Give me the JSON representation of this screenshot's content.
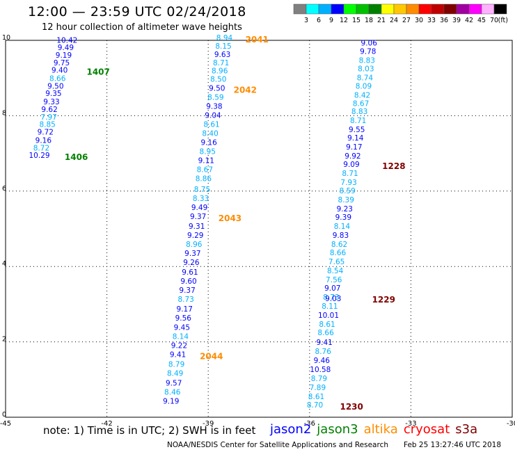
{
  "header": {
    "title": "12:00 — 23:59 UTC 02/24/2018",
    "subtitle": "12 hour collection of altimeter wave heights"
  },
  "legend": {
    "unit": "(ft)",
    "colors": [
      "#808080",
      "#00ffff",
      "#00b0ff",
      "#0000ff",
      "#00ff00",
      "#00c000",
      "#008000",
      "#ffff00",
      "#ffc800",
      "#ff8c00",
      "#ff0000",
      "#c00000",
      "#800000",
      "#a000a0",
      "#ff00ff",
      "#ffb0ff",
      "#000000"
    ],
    "labels": [
      "3",
      "6",
      "9",
      "12",
      "15",
      "18",
      "21",
      "24",
      "27",
      "30",
      "33",
      "36",
      "39",
      "42",
      "45",
      "70"
    ]
  },
  "axes": {
    "x_ticks": [
      "-45",
      "-42",
      "-39",
      "-36",
      "-33",
      "-30"
    ],
    "y_ticks": [
      "0",
      "2",
      "4",
      "6",
      "8",
      "10"
    ]
  },
  "tracks": [
    {
      "id": "1407",
      "color": "#008000",
      "points": [
        {
          "lon": -43.18,
          "lat": 9.94,
          "v": "10.42",
          "c": "#0000ff"
        },
        {
          "lon": -43.22,
          "lat": 9.74,
          "v": "9.49",
          "c": "#0000ff"
        },
        {
          "lon": -43.28,
          "lat": 9.54,
          "v": "9.19",
          "c": "#0000ff"
        },
        {
          "lon": -43.34,
          "lat": 9.34,
          "v": "9.75",
          "c": "#0000ff"
        },
        {
          "lon": -43.4,
          "lat": 9.14,
          "v": "9.40",
          "c": "#0000ff"
        },
        {
          "lon": -43.46,
          "lat": 8.92,
          "v": "8.66",
          "c": "#00b0ff"
        },
        {
          "lon": -43.52,
          "lat": 8.72,
          "v": "9.50",
          "c": "#0000ff"
        },
        {
          "lon": -43.58,
          "lat": 8.52,
          "v": "9.35",
          "c": "#0000ff"
        },
        {
          "lon": -43.64,
          "lat": 8.3,
          "v": "9.33",
          "c": "#0000ff"
        },
        {
          "lon": -43.7,
          "lat": 8.1,
          "v": "9.62",
          "c": "#0000ff"
        }
      ]
    },
    {
      "id": "1406",
      "color": "#008000",
      "points": [
        {
          "lon": -43.72,
          "lat": 7.9,
          "v": "7.97",
          "c": "#00b0ff"
        },
        {
          "lon": -43.76,
          "lat": 7.7,
          "v": "8.85",
          "c": "#00b0ff"
        },
        {
          "lon": -43.82,
          "lat": 7.5,
          "v": "9.72",
          "c": "#0000ff"
        },
        {
          "lon": -43.88,
          "lat": 7.28,
          "v": "9.16",
          "c": "#0000ff"
        },
        {
          "lon": -43.94,
          "lat": 7.08,
          "v": "8.72",
          "c": "#00b0ff"
        },
        {
          "lon": -44.0,
          "lat": 6.88,
          "v": "10.29",
          "c": "#0000ff"
        }
      ]
    },
    {
      "id": "2041",
      "color": "#ff8c00",
      "points": [
        {
          "lon": -38.52,
          "lat": 10.0,
          "v": "8.94",
          "c": "#00b0ff"
        },
        {
          "lon": -38.55,
          "lat": 9.78,
          "v": "8.15",
          "c": "#00b0ff"
        },
        {
          "lon": -38.58,
          "lat": 9.56,
          "v": "9.63",
          "c": "#0000ff"
        },
        {
          "lon": -38.62,
          "lat": 9.34,
          "v": "8.71",
          "c": "#00b0ff"
        },
        {
          "lon": -38.66,
          "lat": 9.12,
          "v": "8.96",
          "c": "#00b0ff"
        },
        {
          "lon": -38.7,
          "lat": 8.9,
          "v": "8.50",
          "c": "#00b0ff"
        }
      ]
    },
    {
      "id": "2042",
      "color": "#ff8c00",
      "points": [
        {
          "lon": -38.74,
          "lat": 8.66,
          "v": "9.50",
          "c": "#0000ff"
        },
        {
          "lon": -38.78,
          "lat": 8.42,
          "v": "8.59",
          "c": "#00b0ff"
        },
        {
          "lon": -38.82,
          "lat": 8.18,
          "v": "9.38",
          "c": "#0000ff"
        },
        {
          "lon": -38.86,
          "lat": 7.94,
          "v": "9.04",
          "c": "#0000ff"
        },
        {
          "lon": -38.9,
          "lat": 7.7,
          "v": "8.61",
          "c": "#00b0ff"
        },
        {
          "lon": -38.94,
          "lat": 7.46,
          "v": "8.40",
          "c": "#00b0ff"
        },
        {
          "lon": -38.98,
          "lat": 7.22,
          "v": "9.16",
          "c": "#0000ff"
        },
        {
          "lon": -39.02,
          "lat": 6.98,
          "v": "8.95",
          "c": "#00b0ff"
        },
        {
          "lon": -39.06,
          "lat": 6.74,
          "v": "9.11",
          "c": "#0000ff"
        },
        {
          "lon": -39.1,
          "lat": 6.5,
          "v": "8.67",
          "c": "#00b0ff"
        },
        {
          "lon": -39.14,
          "lat": 6.26,
          "v": "8.86",
          "c": "#00b0ff"
        },
        {
          "lon": -39.18,
          "lat": 5.98,
          "v": "8.75",
          "c": "#00b0ff"
        },
        {
          "lon": -39.22,
          "lat": 5.74,
          "v": "8.33",
          "c": "#00b0ff"
        }
      ]
    },
    {
      "id": "2043",
      "color": "#ff8c00",
      "points": [
        {
          "lon": -39.26,
          "lat": 5.5,
          "v": "9.49",
          "c": "#0000ff"
        },
        {
          "lon": -39.3,
          "lat": 5.26,
          "v": "9.37",
          "c": "#0000ff"
        },
        {
          "lon": -39.34,
          "lat": 5.0,
          "v": "9.31",
          "c": "#0000ff"
        },
        {
          "lon": -39.38,
          "lat": 4.76,
          "v": "9.29",
          "c": "#0000ff"
        },
        {
          "lon": -39.42,
          "lat": 4.52,
          "v": "8.96",
          "c": "#00b0ff"
        },
        {
          "lon": -39.46,
          "lat": 4.28,
          "v": "9.37",
          "c": "#0000ff"
        },
        {
          "lon": -39.5,
          "lat": 4.04,
          "v": "9.26",
          "c": "#0000ff"
        },
        {
          "lon": -39.54,
          "lat": 3.78,
          "v": "9.61",
          "c": "#0000ff"
        },
        {
          "lon": -39.58,
          "lat": 3.54,
          "v": "9.60",
          "c": "#0000ff"
        },
        {
          "lon": -39.62,
          "lat": 3.3,
          "v": "9.37",
          "c": "#0000ff"
        },
        {
          "lon": -39.66,
          "lat": 3.06,
          "v": "8.73",
          "c": "#00b0ff"
        },
        {
          "lon": -39.7,
          "lat": 2.8,
          "v": "9.17",
          "c": "#0000ff"
        },
        {
          "lon": -39.74,
          "lat": 2.56,
          "v": "9.56",
          "c": "#0000ff"
        },
        {
          "lon": -39.78,
          "lat": 2.32,
          "v": "9.45",
          "c": "#0000ff"
        },
        {
          "lon": -39.82,
          "lat": 2.08,
          "v": "8.14",
          "c": "#00b0ff"
        }
      ]
    },
    {
      "id": "2044",
      "color": "#ff8c00",
      "points": [
        {
          "lon": -39.86,
          "lat": 1.84,
          "v": "9.22",
          "c": "#0000ff"
        },
        {
          "lon": -39.9,
          "lat": 1.6,
          "v": "9.41",
          "c": "#0000ff"
        },
        {
          "lon": -39.94,
          "lat": 1.34,
          "v": "8.79",
          "c": "#00b0ff"
        },
        {
          "lon": -39.98,
          "lat": 1.1,
          "v": "8.49",
          "c": "#00b0ff"
        },
        {
          "lon": -40.02,
          "lat": 0.84,
          "v": "9.57",
          "c": "#0000ff"
        },
        {
          "lon": -40.06,
          "lat": 0.6,
          "v": "8.46",
          "c": "#00b0ff"
        },
        {
          "lon": -40.1,
          "lat": 0.36,
          "v": "9.19",
          "c": "#0000ff"
        }
      ]
    },
    {
      "id": "1228",
      "color": "#800000",
      "points": [
        {
          "lon": -34.24,
          "lat": 9.86,
          "v": "9.06",
          "c": "#0000ff"
        },
        {
          "lon": -34.27,
          "lat": 9.64,
          "v": "9.78",
          "c": "#0000ff"
        },
        {
          "lon": -34.3,
          "lat": 9.4,
          "v": "8.83",
          "c": "#00b0ff"
        },
        {
          "lon": -34.33,
          "lat": 9.18,
          "v": "8.03",
          "c": "#00b0ff"
        },
        {
          "lon": -34.36,
          "lat": 8.94,
          "v": "8.74",
          "c": "#00b0ff"
        },
        {
          "lon": -34.4,
          "lat": 8.72,
          "v": "8.09",
          "c": "#00b0ff"
        },
        {
          "lon": -34.44,
          "lat": 8.48,
          "v": "8.42",
          "c": "#00b0ff"
        },
        {
          "lon": -34.48,
          "lat": 8.26,
          "v": "8.67",
          "c": "#00b0ff"
        },
        {
          "lon": -34.52,
          "lat": 8.04,
          "v": "8.83",
          "c": "#00b0ff"
        },
        {
          "lon": -34.56,
          "lat": 7.8,
          "v": "8.71",
          "c": "#00b0ff"
        },
        {
          "lon": -34.6,
          "lat": 7.56,
          "v": "9.55",
          "c": "#0000ff"
        },
        {
          "lon": -34.64,
          "lat": 7.34,
          "v": "9.14",
          "c": "#0000ff"
        },
        {
          "lon": -34.68,
          "lat": 7.1,
          "v": "9.17",
          "c": "#0000ff"
        },
        {
          "lon": -34.72,
          "lat": 6.86,
          "v": "9.92",
          "c": "#0000ff"
        },
        {
          "lon": -34.76,
          "lat": 6.64,
          "v": "9.09",
          "c": "#0000ff"
        },
        {
          "lon": -34.8,
          "lat": 6.4,
          "v": "8.71",
          "c": "#00b0ff"
        }
      ]
    },
    {
      "id": "1229",
      "color": "#800000",
      "points": [
        {
          "lon": -34.84,
          "lat": 6.16,
          "v": "7.93",
          "c": "#00b0ff"
        },
        {
          "lon": -34.88,
          "lat": 5.94,
          "v": "8.59",
          "c": "#00b0ff"
        },
        {
          "lon": -34.92,
          "lat": 5.7,
          "v": "8.39",
          "c": "#00b0ff"
        },
        {
          "lon": -34.96,
          "lat": 5.46,
          "v": "9.23",
          "c": "#0000ff"
        },
        {
          "lon": -35.0,
          "lat": 5.24,
          "v": "9.39",
          "c": "#0000ff"
        },
        {
          "lon": -35.04,
          "lat": 5.0,
          "v": "8.14",
          "c": "#00b0ff"
        },
        {
          "lon": -35.08,
          "lat": 4.76,
          "v": "9.83",
          "c": "#0000ff"
        },
        {
          "lon": -35.12,
          "lat": 4.52,
          "v": "8.62",
          "c": "#00b0ff"
        },
        {
          "lon": -35.16,
          "lat": 4.3,
          "v": "8.66",
          "c": "#00b0ff"
        },
        {
          "lon": -35.2,
          "lat": 4.06,
          "v": "7.65",
          "c": "#00b0ff"
        },
        {
          "lon": -35.24,
          "lat": 3.82,
          "v": "8.54",
          "c": "#00b0ff"
        },
        {
          "lon": -35.28,
          "lat": 3.58,
          "v": "7.56",
          "c": "#00b0ff"
        },
        {
          "lon": -35.32,
          "lat": 3.36,
          "v": "9.07",
          "c": "#0000ff"
        },
        {
          "lon": -35.36,
          "lat": 3.12,
          "v": "8.73",
          "c": "#00b0ff"
        },
        {
          "lon": -35.3,
          "lat": 3.08,
          "v": "9.03",
          "c": "#0000ff"
        },
        {
          "lon": -35.4,
          "lat": 2.88,
          "v": "8.11",
          "c": "#00b0ff"
        },
        {
          "lon": -35.44,
          "lat": 2.64,
          "v": "10.01",
          "c": "#0000ff"
        },
        {
          "lon": -35.48,
          "lat": 2.4,
          "v": "8.61",
          "c": "#00b0ff"
        },
        {
          "lon": -35.52,
          "lat": 2.18,
          "v": "8.66",
          "c": "#00b0ff"
        }
      ]
    },
    {
      "id": "1230",
      "color": "#800000",
      "points": [
        {
          "lon": -35.56,
          "lat": 1.92,
          "v": "9.41",
          "c": "#0000ff"
        },
        {
          "lon": -35.6,
          "lat": 1.68,
          "v": "8.76",
          "c": "#00b0ff"
        },
        {
          "lon": -35.64,
          "lat": 1.44,
          "v": "9.46",
          "c": "#0000ff"
        },
        {
          "lon": -35.68,
          "lat": 1.2,
          "v": "10.58",
          "c": "#0000ff"
        },
        {
          "lon": -35.72,
          "lat": 0.96,
          "v": "8.79",
          "c": "#00b0ff"
        },
        {
          "lon": -35.76,
          "lat": 0.72,
          "v": "7.89",
          "c": "#00b0ff"
        },
        {
          "lon": -35.8,
          "lat": 0.48,
          "v": "8.61",
          "c": "#00b0ff"
        },
        {
          "lon": -35.84,
          "lat": 0.26,
          "v": "8.70",
          "c": "#00b0ff"
        }
      ]
    }
  ],
  "track_labels": [
    {
      "id": "1407",
      "lon": -42.6,
      "lat": 9.12,
      "color": "#008000"
    },
    {
      "id": "1406",
      "lon": -43.25,
      "lat": 6.86,
      "color": "#008000"
    },
    {
      "id": "2041",
      "lon": -37.9,
      "lat": 9.98,
      "color": "#ff8c00"
    },
    {
      "id": "2042",
      "lon": -38.25,
      "lat": 8.64,
      "color": "#ff8c00"
    },
    {
      "id": "2043",
      "lon": -38.7,
      "lat": 5.24,
      "color": "#ff8c00"
    },
    {
      "id": "2044",
      "lon": -39.25,
      "lat": 1.58,
      "color": "#ff8c00"
    },
    {
      "id": "1228",
      "lon": -33.85,
      "lat": 6.62,
      "color": "#800000"
    },
    {
      "id": "1229",
      "lon": -34.15,
      "lat": 3.08,
      "color": "#800000"
    },
    {
      "id": "1230",
      "lon": -35.1,
      "lat": 0.24,
      "color": "#800000"
    }
  ],
  "footer": {
    "note": "note: 1) Time is in UTC; 2) SWH is in feet",
    "satellites": [
      {
        "name": "jason2",
        "color": "#0000ff"
      },
      {
        "name": "jason3",
        "color": "#008000"
      },
      {
        "name": "altika",
        "color": "#ff8c00"
      },
      {
        "name": "cryosat",
        "color": "#ff0000"
      },
      {
        "name": "s3a",
        "color": "#800000"
      }
    ],
    "credit": "NOAA/NESDIS Center for Satellite Applications and Research",
    "timestamp": "Feb 25 13:27:46 UTC 2018"
  }
}
